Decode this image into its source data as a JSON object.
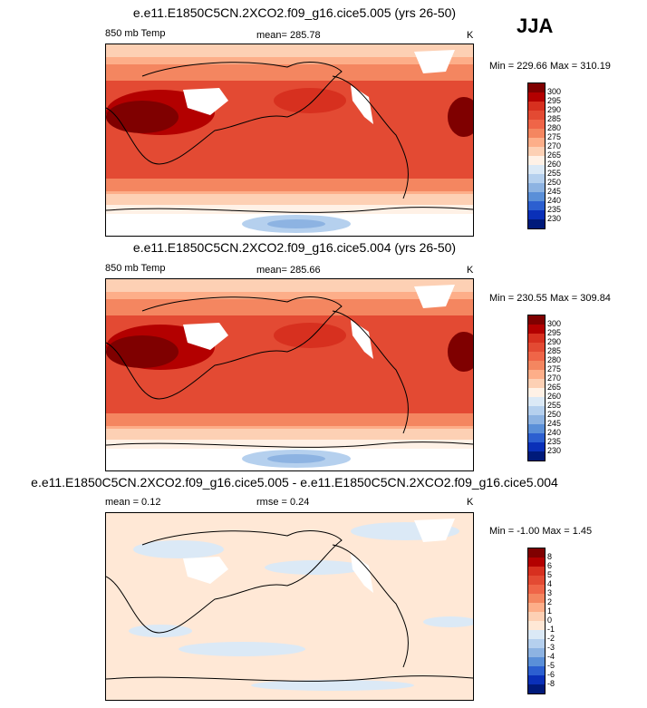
{
  "season": "JJA",
  "panels": [
    {
      "title": "e.e11.E1850C5CN.2XCO2.f09_g16.cice5.005 (yrs 26-50)",
      "left": "850 mb Temp",
      "center": "mean= 285.78",
      "units": "K",
      "minmax": "Min = 229.66 Max = 310.19",
      "levels": [
        "300",
        "295",
        "290",
        "285",
        "280",
        "275",
        "270",
        "265",
        "260",
        "255",
        "250",
        "245",
        "240",
        "235",
        "230"
      ]
    },
    {
      "title": "e.e11.E1850C5CN.2XCO2.f09_g16.cice5.004 (yrs 26-50)",
      "left": "850 mb Temp",
      "center": "mean= 285.66",
      "units": "K",
      "minmax": "Min = 230.55 Max = 309.84",
      "levels": [
        "300",
        "295",
        "290",
        "285",
        "280",
        "275",
        "270",
        "265",
        "260",
        "255",
        "250",
        "245",
        "240",
        "235",
        "230"
      ]
    },
    {
      "title": "e.e11.E1850C5CN.2XCO2.f09_g16.cice5.005 - e.e11.E1850C5CN.2XCO2.f09_g16.cice5.004",
      "left": "mean =   0.12",
      "center": "rmse =   0.24",
      "units": "K",
      "minmax": "Min =  -1.00 Max =   1.45",
      "levels": [
        "8",
        "6",
        "5",
        "4",
        "3",
        "2",
        "1",
        "0",
        "-1",
        "-2",
        "-3",
        "-4",
        "-5",
        "-6",
        "-8"
      ]
    }
  ],
  "colors": {
    "abs_scale": [
      "#7f0000",
      "#b30000",
      "#d7301f",
      "#e34a33",
      "#ef6548",
      "#f48660",
      "#fdae89",
      "#fdd0b4",
      "#fff1e6",
      "#dbe9f6",
      "#b5d0ee",
      "#8db3e2",
      "#5a8fd8",
      "#2c5fd0",
      "#0a30b8",
      "#001a7a"
    ],
    "diff_scale": [
      "#7f0000",
      "#b30000",
      "#d7301f",
      "#e34a33",
      "#ef6548",
      "#f48660",
      "#fdae89",
      "#fdd0b4",
      "#ffe8d6",
      "#dbe9f6",
      "#b5d0ee",
      "#8db3e2",
      "#5a8fd8",
      "#2c5fd0",
      "#0a30b8",
      "#001a7a"
    ]
  }
}
